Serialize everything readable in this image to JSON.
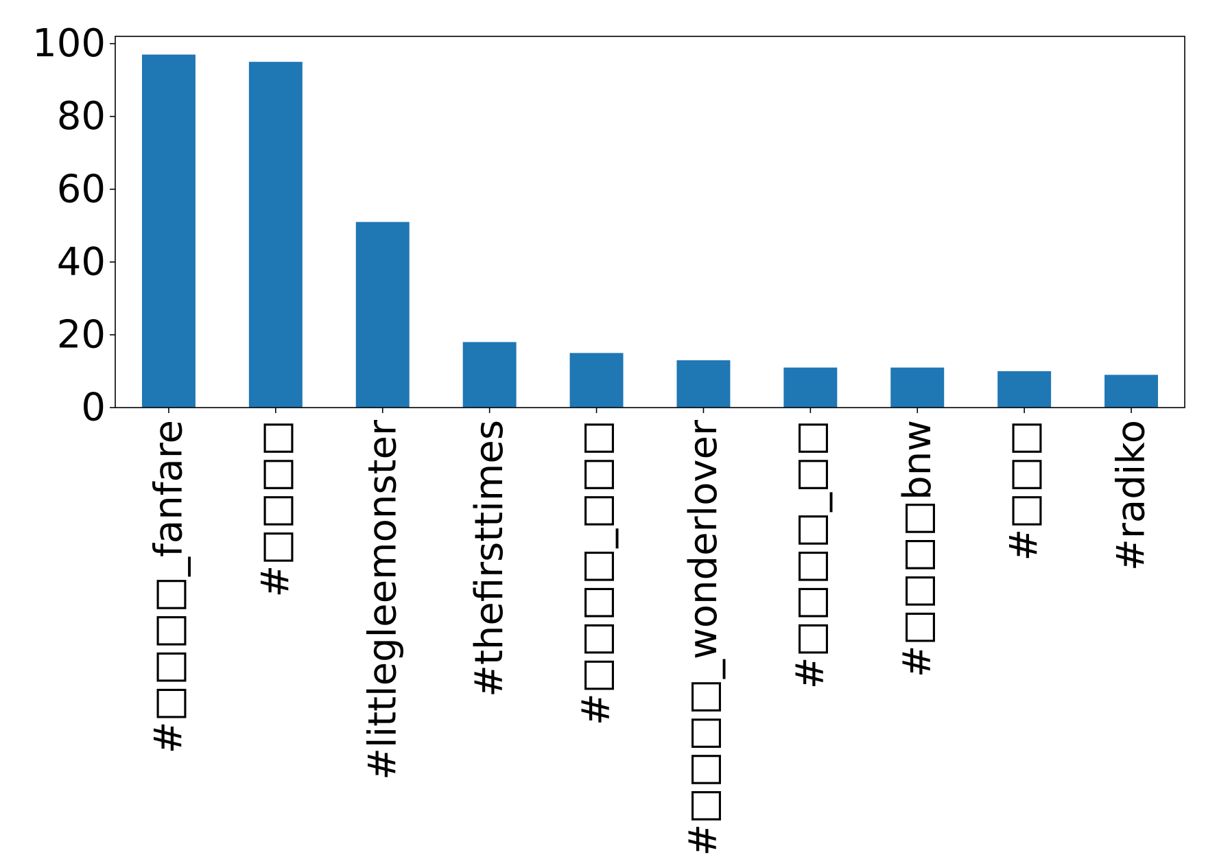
{
  "chart_data": {
    "type": "bar",
    "title": "",
    "xlabel": "",
    "ylabel": "",
    "categories": [
      "#□□□□_fanfare",
      "#□□□□",
      "#littlegleemonster",
      "#thefirsttimes",
      "#□□□□_□□□",
      "#□□□□_wonderlover",
      "#□□□□_□□",
      "#□□□□bnw",
      "#□□□",
      "#radiko"
    ],
    "values": [
      97,
      95,
      51,
      18,
      15,
      13,
      11,
      11,
      10,
      9
    ],
    "ylim": [
      0,
      102
    ],
    "yticks": [
      0,
      20,
      40,
      60,
      80,
      100
    ],
    "bar_color": "#1f77b4",
    "grid": false,
    "legend": "none"
  }
}
